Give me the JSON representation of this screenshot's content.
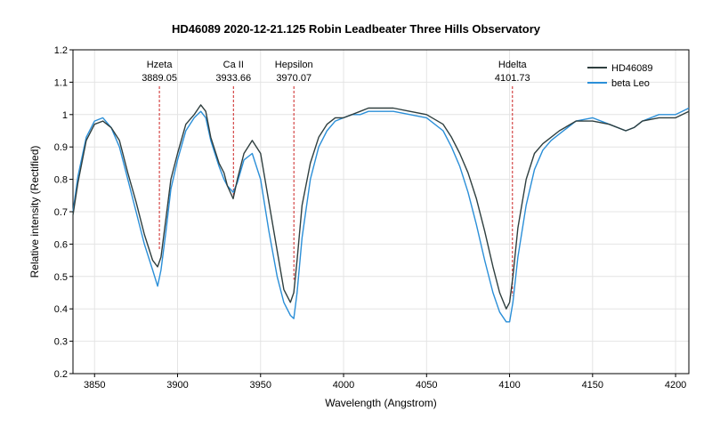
{
  "chart_data": {
    "type": "line",
    "title": "HD46089  2020-12-21.125  Robin  Leadbeater  Three Hills Observatory",
    "xlabel": "Wavelength (Angstrom)",
    "ylabel": "Relative intensity (Rectified)",
    "xlim": [
      3837,
      4208
    ],
    "ylim": [
      0.2,
      1.2
    ],
    "xticks": [
      3850,
      3900,
      3950,
      4000,
      4050,
      4100,
      4150,
      4200
    ],
    "yticks": [
      0.2,
      0.3,
      0.4,
      0.5,
      0.6,
      0.7,
      0.8,
      0.9,
      1,
      1.1,
      1.2
    ],
    "legend_position": "top-right",
    "series": [
      {
        "name": "HD46089",
        "color": "#2f3f3f",
        "x": [
          3837,
          3840,
          3845,
          3850,
          3855,
          3860,
          3865,
          3870,
          3875,
          3880,
          3885,
          3888,
          3890,
          3893,
          3896,
          3900,
          3905,
          3910,
          3914,
          3917,
          3920,
          3925,
          3928,
          3930,
          3933.5,
          3936,
          3940,
          3945,
          3950,
          3955,
          3960,
          3964,
          3968,
          3970,
          3972,
          3975,
          3980,
          3985,
          3990,
          3995,
          4000,
          4005,
          4010,
          4015,
          4020,
          4030,
          4040,
          4050,
          4060,
          4065,
          4070,
          4075,
          4080,
          4085,
          4090,
          4094,
          4098,
          4100,
          4102,
          4105,
          4110,
          4115,
          4120,
          4125,
          4130,
          4140,
          4150,
          4160,
          4170,
          4175,
          4180,
          4190,
          4200,
          4208
        ],
        "y": [
          0.69,
          0.79,
          0.92,
          0.97,
          0.98,
          0.96,
          0.92,
          0.82,
          0.73,
          0.63,
          0.55,
          0.53,
          0.56,
          0.68,
          0.8,
          0.88,
          0.97,
          1.0,
          1.03,
          1.01,
          0.93,
          0.85,
          0.82,
          0.78,
          0.74,
          0.8,
          0.88,
          0.92,
          0.88,
          0.73,
          0.58,
          0.46,
          0.42,
          0.45,
          0.55,
          0.72,
          0.85,
          0.93,
          0.97,
          0.99,
          0.99,
          1.0,
          1.01,
          1.02,
          1.02,
          1.02,
          1.01,
          1.0,
          0.97,
          0.93,
          0.88,
          0.82,
          0.74,
          0.64,
          0.53,
          0.45,
          0.4,
          0.42,
          0.5,
          0.65,
          0.8,
          0.88,
          0.91,
          0.93,
          0.95,
          0.98,
          0.98,
          0.97,
          0.95,
          0.96,
          0.98,
          0.99,
          0.99,
          1.01
        ]
      },
      {
        "name": "beta Leo",
        "color": "#2b8fd8",
        "x": [
          3837,
          3840,
          3845,
          3850,
          3855,
          3860,
          3865,
          3870,
          3875,
          3880,
          3885,
          3888,
          3890,
          3893,
          3896,
          3900,
          3905,
          3910,
          3914,
          3917,
          3920,
          3925,
          3928,
          3930,
          3933.5,
          3936,
          3940,
          3945,
          3950,
          3955,
          3960,
          3964,
          3968,
          3970,
          3972,
          3975,
          3980,
          3985,
          3990,
          3995,
          4000,
          4005,
          4010,
          4015,
          4020,
          4030,
          4040,
          4050,
          4060,
          4065,
          4070,
          4075,
          4080,
          4085,
          4090,
          4094,
          4098,
          4100,
          4102,
          4105,
          4110,
          4115,
          4120,
          4125,
          4130,
          4140,
          4150,
          4160,
          4170,
          4175,
          4180,
          4190,
          4200,
          4208
        ],
        "y": [
          0.7,
          0.81,
          0.93,
          0.98,
          0.99,
          0.96,
          0.9,
          0.8,
          0.7,
          0.6,
          0.52,
          0.47,
          0.52,
          0.64,
          0.77,
          0.86,
          0.95,
          0.99,
          1.01,
          0.99,
          0.92,
          0.84,
          0.8,
          0.78,
          0.76,
          0.79,
          0.86,
          0.88,
          0.8,
          0.64,
          0.5,
          0.42,
          0.38,
          0.37,
          0.45,
          0.62,
          0.8,
          0.9,
          0.95,
          0.98,
          0.99,
          1.0,
          1.0,
          1.01,
          1.01,
          1.01,
          1.0,
          0.99,
          0.95,
          0.9,
          0.84,
          0.76,
          0.66,
          0.55,
          0.45,
          0.39,
          0.36,
          0.36,
          0.42,
          0.56,
          0.72,
          0.83,
          0.89,
          0.92,
          0.94,
          0.98,
          0.99,
          0.97,
          0.95,
          0.96,
          0.98,
          1.0,
          1.0,
          1.02
        ]
      }
    ],
    "annotations": [
      {
        "name": "Hzeta",
        "wavelength": "3889.05",
        "x": 3889.05,
        "y_bottom": 0.58
      },
      {
        "name": "Ca II",
        "wavelength": "3933.66",
        "x": 3933.66,
        "y_bottom": 0.75
      },
      {
        "name": "Hepsilon",
        "wavelength": "3970.07",
        "x": 3970.07,
        "y_bottom": 0.49
      },
      {
        "name": "Hdelta",
        "wavelength": "4101.73",
        "x": 4101.73,
        "y_bottom": 0.44
      }
    ]
  }
}
